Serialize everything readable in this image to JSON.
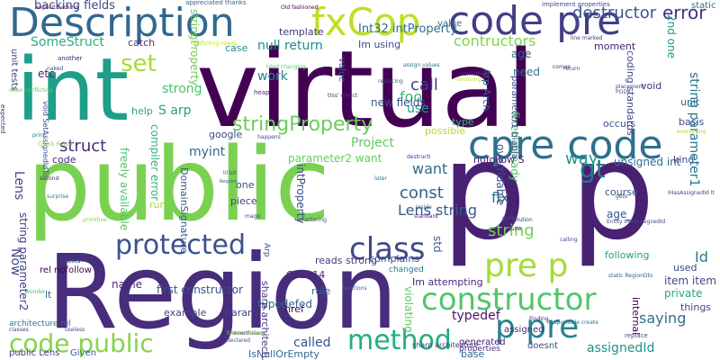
{
  "words": [
    {
      "text": "virtual",
      "color": "#440154"
    },
    {
      "text": "public",
      "color": "#7ad151"
    },
    {
      "text": "p p",
      "color": "#482173"
    },
    {
      "text": "Region",
      "color": "#472d7b"
    },
    {
      "text": "int",
      "color": "#1f9e89"
    },
    {
      "text": "Description",
      "color": "#31688e"
    },
    {
      "text": "fxCop",
      "color": "#bddf26"
    },
    {
      "text": "code pre",
      "color": "#433e85"
    },
    {
      "text": "cpre code",
      "color": "#2d708e"
    },
    {
      "text": "protected",
      "color": "#3b528b"
    },
    {
      "text": "class",
      "color": "#3e4a89"
    },
    {
      "text": "pre p",
      "color": "#a5db36"
    },
    {
      "text": "constructor",
      "color": "#52c569"
    },
    {
      "text": "p pre",
      "color": "#26828e"
    },
    {
      "text": "method",
      "color": "#25ab82"
    },
    {
      "text": "code public",
      "color": "#86d549"
    },
    {
      "text": "stringProperty",
      "color": "#6ccd5a"
    },
    {
      "text": "set",
      "color": "#a8db34"
    },
    {
      "text": "gt",
      "color": "#2a788e"
    },
    {
      "text": "Lens",
      "color": "#3f4788"
    },
    {
      "text": "string",
      "color": "#73d056"
    },
    {
      "text": "Lens string",
      "color": "#365c8d"
    },
    {
      "text": "const",
      "color": "#33638d"
    },
    {
      "text": "way",
      "color": "#1f9a8a"
    },
    {
      "text": "destructor",
      "color": "#3a548c"
    },
    {
      "text": "error",
      "color": "#46307e"
    },
    {
      "text": "contructors",
      "color": "#7fd34e"
    },
    {
      "text": "Int32 intProperty",
      "color": "#2e6f8e"
    },
    {
      "text": "backing fields",
      "color": "#3f4889"
    },
    {
      "text": "SomeStruct",
      "color": "#2ab07f"
    },
    {
      "text": "null return",
      "color": "#228c8d"
    },
    {
      "text": "call",
      "color": "#433d84"
    },
    {
      "text": "foo",
      "color": "#40bd72"
    },
    {
      "text": "work",
      "color": "#24878e"
    },
    {
      "text": "strong",
      "color": "#4ac16d"
    },
    {
      "text": "S arp",
      "color": "#20a386"
    },
    {
      "text": "struct",
      "color": "#472c7a"
    },
    {
      "text": "myint",
      "color": "#31678e"
    },
    {
      "text": "Project",
      "color": "#5ec962"
    },
    {
      "text": "intProperty",
      "color": "#3b518b"
    },
    {
      "text": "want",
      "color": "#2f6c8e"
    },
    {
      "text": "fix",
      "color": "#2c728e"
    },
    {
      "text": "std",
      "color": "#38598c"
    },
    {
      "text": "use",
      "color": "#1e9c89"
    },
    {
      "text": "new fields",
      "color": "#3c508b"
    },
    {
      "text": "typedef",
      "color": "#481668"
    },
    {
      "text": "typedefed",
      "color": "#34618d"
    },
    {
      "text": "saying",
      "color": "#2e6e8e"
    },
    {
      "text": "assignedId",
      "color": "#21918c"
    },
    {
      "text": "called",
      "color": "#3a538b"
    },
    {
      "text": "name",
      "color": "#472a7a"
    },
    {
      "text": "first constructor",
      "color": "#3d4e8a"
    },
    {
      "text": "parameter2 want",
      "color": "#65cb5e"
    },
    {
      "text": "string parameter1",
      "color": "#2a768e"
    },
    {
      "text": "unsigned int",
      "color": "#2e6d8e"
    },
    {
      "text": "2nd one",
      "color": "#1f958b"
    },
    {
      "text": "nofollow S",
      "color": "#48186a"
    },
    {
      "text": "age",
      "color": "#34608d"
    },
    {
      "text": "need",
      "color": "#2b748e"
    },
    {
      "text": "Im using",
      "color": "#3e4c8a"
    },
    {
      "text": "template",
      "color": "#453882"
    },
    {
      "text": "case",
      "color": "#23898e"
    },
    {
      "text": "catch",
      "color": "#46337f"
    },
    {
      "text": "etc",
      "color": "#482475"
    },
    {
      "text": "compiler error",
      "color": "#2db27d"
    },
    {
      "text": "google",
      "color": "#3e4a89"
    },
    {
      "text": "help",
      "color": "#21a685"
    },
    {
      "text": "code",
      "color": "#482576"
    },
    {
      "text": "freely available",
      "color": "#4fc46a"
    },
    {
      "text": "one",
      "color": "#3c4f8a"
    },
    {
      "text": "piece",
      "color": "#3f4788"
    },
    {
      "text": "DomainSignature",
      "color": "#39568c"
    },
    {
      "text": "run",
      "color": "#a0da39"
    },
    {
      "text": "string parameter2",
      "color": "#443983"
    },
    {
      "text": "param",
      "color": "#433e85"
    },
    {
      "text": "href",
      "color": "#460b5e"
    },
    {
      "text": "example",
      "color": "#3f4889"
    },
    {
      "text": "IsNullOrEmpty",
      "color": "#31688e"
    },
    {
      "text": "CA2214",
      "color": "#482878"
    },
    {
      "text": "item item",
      "color": "#3f4889"
    },
    {
      "text": "private",
      "color": "#22a884"
    },
    {
      "text": "internal",
      "color": "#440154"
    },
    {
      "text": "Id",
      "color": "#2c738e"
    },
    {
      "text": "used",
      "color": "#3e4989"
    },
    {
      "text": "age_",
      "color": "#3b528b"
    },
    {
      "text": "course",
      "color": "#38598c"
    },
    {
      "text": "kind",
      "color": "#404688"
    },
    {
      "text": "basis",
      "color": "#3f4889"
    },
    {
      "text": "void",
      "color": "#472d7b"
    },
    {
      "text": "unit",
      "color": "#2e6e8e"
    },
    {
      "text": "occurs",
      "color": "#3a548c"
    },
    {
      "text": "coding standards",
      "color": "#3e4989"
    },
    {
      "text": "moment",
      "color": "#482071"
    },
    {
      "text": "static",
      "color": "#2d718e"
    },
    {
      "text": "things",
      "color": "#3f4788"
    },
    {
      "text": "following",
      "color": "#1f9e89"
    },
    {
      "text": "Im attempting",
      "color": "#482677"
    },
    {
      "text": "base",
      "color": "#2f6b8e"
    },
    {
      "text": "doesnt",
      "color": "#3e4c8a"
    },
    {
      "text": "generated",
      "color": "#482173"
    },
    {
      "text": "properties",
      "color": "#46337f"
    },
    {
      "text": "assigned",
      "color": "#482878"
    },
    {
      "text": "violating",
      "color": "#5ec962"
    },
    {
      "text": "sharp architecture",
      "color": "#443a83"
    },
    {
      "text": "rule",
      "color": "#2e6f8e"
    },
    {
      "text": "complains",
      "color": "#3d4e8a"
    },
    {
      "text": "changed",
      "color": "#2a788e"
    },
    {
      "text": "reads strong",
      "color": "#453781"
    },
    {
      "text": "possible",
      "color": "#addc30"
    },
    {
      "text": "Arp Arch",
      "color": "#33638d"
    },
    {
      "text": "type",
      "color": "#35b779"
    },
    {
      "text": "overridable",
      "color": "#3b528b"
    },
    {
      "text": "parameter1 blabla",
      "color": "#3e4c8a"
    },
    {
      "text": "fixed already",
      "color": "#52c569"
    },
    {
      "text": "value",
      "color": "#31688e"
    },
    {
      "text": "lt",
      "color": "#2c728e"
    },
    {
      "text": "Now",
      "color": "#3e4a89"
    },
    {
      "text": "Given",
      "color": "#38598c"
    },
    {
      "text": "public Lens",
      "color": "#433e85"
    },
    {
      "text": "architecture rel",
      "color": "#2c738e"
    },
    {
      "text": "rel nofollow",
      "color": "#440154"
    },
    {
      "text": "unit tests",
      "color": "#453882"
    },
    {
      "text": "explicit backing",
      "color": "#482878"
    },
    {
      "text": "looks",
      "color": "#3f4889"
    },
    {
      "text": "Arp",
      "color": "#3b528b"
    },
    {
      "text": "appreciated thanks",
      "color": "#32658e"
    },
    {
      "text": "implement properties",
      "color": "#3e4989"
    },
    {
      "text": "conflicting needs",
      "color": "#c2df23"
    },
    {
      "text": "Old fashioned",
      "color": "#440154"
    },
    {
      "text": "another",
      "color": "#482173"
    },
    {
      "text": "naked",
      "color": "#3e4a89"
    },
    {
      "text": "tried changing",
      "color": "#5ec962"
    },
    {
      "text": "heap",
      "color": "#482475"
    },
    {
      "text": "replacing",
      "color": "#3a548c"
    },
    {
      "text": "this' object",
      "color": "#472d7b"
    },
    {
      "text": "assign values",
      "color": "#2a788e"
    },
    {
      "text": "something",
      "color": "#433e85"
    },
    {
      "text": "removing",
      "color": "#bddf26"
    },
    {
      "text": "return",
      "color": "#3b528b"
    },
    {
      "text": "comes",
      "color": "#453882"
    },
    {
      "text": "line marked",
      "color": "#443983"
    },
    {
      "text": "placement",
      "color": "#3e4989"
    },
    {
      "text": "PODs",
      "color": "#38598c"
    },
    {
      "text": "print",
      "color": "#2a788e"
    },
    {
      "text": "pools",
      "color": "#3e4a89"
    },
    {
      "text": "void SetAssignedIdTo",
      "color": "#3f4889"
    },
    {
      "text": "often conflicting",
      "color": "#5ec962"
    },
    {
      "text": "expected",
      "color": "#482878"
    },
    {
      "text": "Check Result",
      "color": "#7ad151"
    },
    {
      "text": "happens",
      "color": "#3e4c8a"
    },
    {
      "text": "destructi",
      "color": "#453781"
    },
    {
      "text": "everything",
      "color": "#a0da39"
    },
    {
      "text": "lil bit",
      "color": "#3b528b"
    },
    {
      "text": "Require",
      "color": "#38598c"
    },
    {
      "text": "later",
      "color": "#2c728e"
    },
    {
      "text": "gives",
      "color": "#3e4989"
    },
    {
      "text": "solution",
      "color": "#443983"
    },
    {
      "text": "quite",
      "color": "#482475"
    },
    {
      "text": "calling",
      "color": "#3e4a89"
    },
    {
      "text": "standard",
      "color": "#482173"
    },
    {
      "text": "inside",
      "color": "#38598c"
    },
    {
      "text": "refactoring",
      "color": "#3f4889"
    },
    {
      "text": "magic",
      "color": "#433e85"
    },
    {
      "text": "second",
      "color": "#482878"
    },
    {
      "text": "surprise",
      "color": "#2a788e"
    },
    {
      "text": "primitive",
      "color": "#7fd34e"
    },
    {
      "text": "wonder",
      "color": "#4ac16d"
    },
    {
      "text": "functions",
      "color": "#31688e"
    },
    {
      "text": "useless",
      "color": "#3e4989"
    },
    {
      "text": "classes",
      "color": "#453882"
    },
    {
      "text": "nevertheless",
      "color": "#482173"
    },
    {
      "text": "declared",
      "color": "#3b528b"
    },
    {
      "text": "fashioned way",
      "color": "#7ad151"
    },
    {
      "text": "Responsible create",
      "color": "#2a788e"
    },
    {
      "text": "replace",
      "color": "#3e4a89"
    },
    {
      "text": "static RegionDto",
      "color": "#38598c"
    },
    {
      "text": "Finding",
      "color": "#482878"
    },
    {
      "text": "Entity IHasAssignedId",
      "color": "#3f4889"
    },
    {
      "text": "IHasAssignedId lt",
      "color": "#3e4989"
    },
    {
      "text": "gets",
      "color": "#433e85"
    },
    {
      "text": "amp",
      "color": "#2c728e"
    }
  ]
}
